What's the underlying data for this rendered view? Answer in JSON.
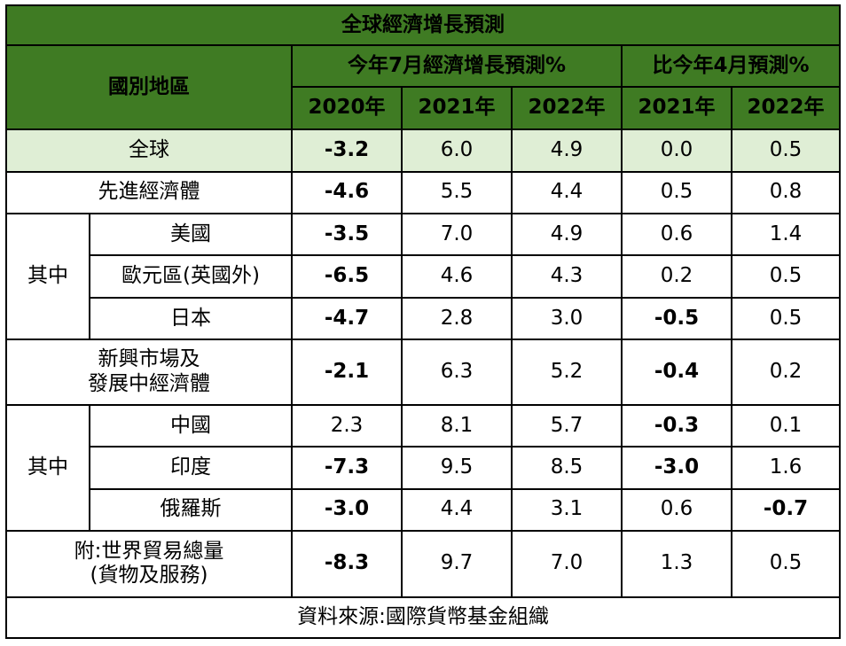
{
  "title": "全球經濟增長預測",
  "header": {
    "region": "國別地區",
    "group_current": "今年7月經濟增長預測%",
    "group_diff": "比今年4月預測%",
    "years_current": [
      "2020年",
      "2021年",
      "2022年"
    ],
    "years_diff": [
      "2021年",
      "2022年"
    ]
  },
  "labels": {
    "of_which": "其中"
  },
  "rows": [
    {
      "name": "全球",
      "values": [
        "-3.2",
        "6.0",
        "4.9",
        "0.0",
        "0.5"
      ]
    },
    {
      "name": "先進經濟體",
      "values": [
        "-4.6",
        "5.5",
        "4.4",
        "0.5",
        "0.8"
      ]
    },
    {
      "name": "美國",
      "values": [
        "-3.5",
        "7.0",
        "4.9",
        "0.6",
        "1.4"
      ]
    },
    {
      "name": "歐元區(英國外)",
      "values": [
        "-6.5",
        "4.6",
        "4.3",
        "0.2",
        "0.5"
      ]
    },
    {
      "name": "日本",
      "values": [
        "-4.7",
        "2.8",
        "3.0",
        "-0.5",
        "0.5"
      ]
    },
    {
      "name_line1": "新興市場及",
      "name_line2": "發展中經濟體",
      "values": [
        "-2.1",
        "6.3",
        "5.2",
        "-0.4",
        "0.2"
      ]
    },
    {
      "name": "中國",
      "values": [
        "2.3",
        "8.1",
        "5.7",
        "-0.3",
        "0.1"
      ]
    },
    {
      "name": "印度",
      "values": [
        "-7.3",
        "9.5",
        "8.5",
        "-3.0",
        "1.6"
      ]
    },
    {
      "name": "俄羅斯",
      "values": [
        "-3.0",
        "4.4",
        "3.1",
        "0.6",
        "-0.7"
      ]
    },
    {
      "name_line1": "附:世界貿易總量",
      "name_line2": "(貨物及服務)",
      "values": [
        "-8.3",
        "9.7",
        "7.0",
        "1.3",
        "0.5"
      ]
    }
  ],
  "source": "資料來源:國際貨幣基金組織",
  "colors": {
    "header_bg": "#3f7b23",
    "highlight_row": "#dfeed5",
    "negative": "#c0392b"
  }
}
